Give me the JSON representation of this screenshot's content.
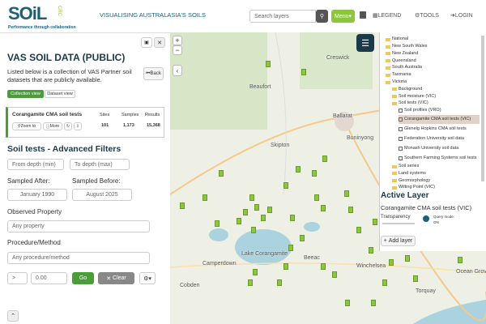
{
  "header": {
    "logo": "SOiL",
    "logo_sub": "CRC",
    "tagline": "Performance through collaboration",
    "title": "VISUALISING AUSTRALASIA'S SOILS",
    "search_placeholder": "Search layers",
    "menu": "Menu",
    "legend": "LEGEND",
    "tools": "TOOLS",
    "login": "LOGIN"
  },
  "panel": {
    "title": "VAS SOIL DATA (PUBLIC)",
    "intro": "Listed below is a collection of VAS Partner soil datasets that are publicly available.",
    "back": "Back",
    "tabs": [
      "Collection view",
      "Dataset view"
    ],
    "dataset": {
      "name": "Corangamite CMA soil tests",
      "zoom": "Zoom to",
      "more": "More",
      "stats": [
        {
          "label": "Sites",
          "value": "101"
        },
        {
          "label": "Samples",
          "value": "1,173"
        },
        {
          "label": "Results",
          "value": "15,368"
        }
      ]
    },
    "filters_title": "Soil tests - Advanced Filters",
    "from_depth": "From depth (min)",
    "to_depth": "To depth (max)",
    "sampled_after": "Sampled After:",
    "sampled_before": "Sampled Before:",
    "after_value": "January 1990",
    "before_value": "August 2025",
    "property_label": "Observed Property",
    "property_value": "Any property",
    "method_label": "Procedure/Method",
    "method_value": "Any procedure/method",
    "operator": ">",
    "amount": "0.00",
    "go": "Go",
    "clear": "Clear"
  },
  "map": {
    "zoom_in": "+",
    "zoom_out": "−",
    "places": [
      "Creswick",
      "Beaufort",
      "Ballarat",
      "Buninyong",
      "Skipton",
      "Lake Corangamite",
      "Camperdown",
      "Beeac",
      "Winchelsea",
      "Torquay",
      "Ocean Grove",
      "Cobden"
    ]
  },
  "layers": {
    "tree": [
      "National",
      "New South Wales",
      "New Zealand",
      "Queensland",
      "South Australia",
      "Tasmania",
      "Victoria",
      "Background",
      "Soil moisture (VIC)",
      "Soil tests (VIC)",
      "Soil profiles (VRO)",
      "Corangamite CMA soil tests (VIC)",
      "Glenelg Hopkins CMA soil tests",
      "Federation University soil data",
      "Monash University soil data",
      "Southern Farming Systems soil tests",
      "Soil series",
      "Land systems",
      "Geomorphology",
      "Wilting Point (VIC)"
    ],
    "active_title": "Active Layer",
    "active_name": "Corangamite CMA soil tests (VIC)",
    "transparency": "Transparency",
    "query_mode": "Query mode:",
    "query_state": "ON",
    "add_layer": "Add layer"
  }
}
